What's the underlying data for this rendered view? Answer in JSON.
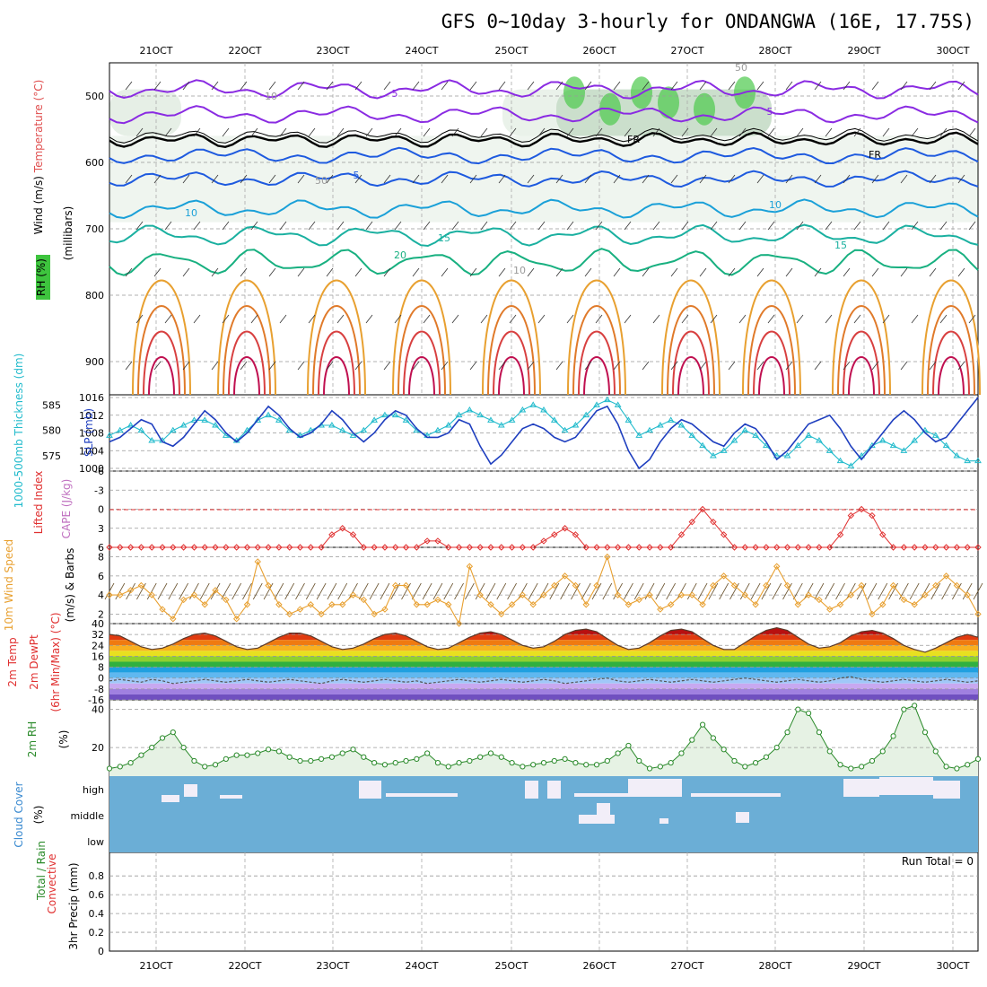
{
  "title": "GFS 0~10day 3-hourly for ONDANGWA (16E, 17.75S)",
  "x_labels": [
    "21OCT",
    "22OCT",
    "23OCT",
    "24OCT",
    "25OCT",
    "26OCT",
    "27OCT",
    "28OCT",
    "29OCT",
    "30OCT"
  ],
  "colors": {
    "cloud_bg": "#6baed6",
    "slp": "#1f3fbf",
    "thickness": "#22bbcc",
    "lifted": "#e03030",
    "wind": "#e8a030",
    "rh": "#2a8a2a"
  },
  "chart_data": [
    {
      "type": "line",
      "panel": "upper-air",
      "ylabel_parts": [
        "Wind (m/s)",
        "Temperature (°C)",
        "RH (%)",
        "(millibars)"
      ],
      "y_ticks": [
        "500",
        "600",
        "700",
        "800",
        "900"
      ],
      "contour_labels": [
        "5",
        "FR",
        "FR",
        "5",
        "5",
        "10",
        "10",
        "15",
        "15",
        "20",
        "10",
        "50",
        "50",
        "10"
      ],
      "ylim": [
        450,
        950
      ]
    },
    {
      "type": "line",
      "panel": "slp-thickness",
      "ylabel_left": "1000-500mb Thickness (dm)",
      "ylabel_right": "SLP (mb)",
      "left_ticks": [
        "585",
        "580",
        "575"
      ],
      "right_ticks": [
        "1016",
        "1012",
        "1008",
        "1004",
        "1000"
      ],
      "slp_range": [
        1000,
        1016
      ],
      "thick_range": [
        572,
        587
      ],
      "slp": [
        1006,
        1007,
        1009,
        1011,
        1010,
        1006,
        1005,
        1007,
        1010,
        1013,
        1011,
        1008,
        1006,
        1008,
        1011,
        1014,
        1012,
        1009,
        1007,
        1008,
        1010,
        1013,
        1011,
        1008,
        1006,
        1008,
        1011,
        1013,
        1012,
        1009,
        1007,
        1007,
        1008,
        1011,
        1010,
        1005,
        1001,
        1003,
        1006,
        1009,
        1010,
        1009,
        1007,
        1006,
        1007,
        1010,
        1013,
        1014,
        1010,
        1004,
        1000,
        1002,
        1006,
        1009,
        1011,
        1010,
        1008,
        1006,
        1005,
        1008,
        1010,
        1009,
        1006,
        1002,
        1004,
        1007,
        1010,
        1011,
        1012,
        1009,
        1005,
        1002,
        1005,
        1008,
        1011,
        1013,
        1011,
        1008,
        1006,
        1007,
        1010,
        1013,
        1016
      ],
      "thickness": [
        579,
        580,
        581,
        580,
        578,
        578,
        580,
        581,
        582,
        582,
        581,
        579,
        578,
        580,
        582,
        583,
        582,
        580,
        579,
        580,
        581,
        581,
        580,
        579,
        580,
        582,
        583,
        583,
        582,
        580,
        579,
        580,
        581,
        583,
        584,
        583,
        582,
        581,
        582,
        584,
        585,
        584,
        582,
        580,
        581,
        583,
        585,
        586,
        585,
        582,
        579,
        580,
        581,
        582,
        581,
        579,
        577,
        575,
        576,
        578,
        580,
        579,
        577,
        575,
        575,
        577,
        579,
        578,
        576,
        574,
        573,
        575,
        577,
        578,
        577,
        576,
        578,
        580,
        579,
        577,
        575,
        574,
        574
      ]
    },
    {
      "type": "line",
      "panel": "instability",
      "ylabel_parts": [
        "Lifted Index",
        "CAPE (J/kg)"
      ],
      "y_ticks": [
        "-6",
        "-3",
        "0",
        "3",
        "6"
      ],
      "ylim": [
        -6,
        6
      ],
      "lifted_index": [
        6,
        6,
        6,
        6,
        6,
        6,
        6,
        6,
        6,
        6,
        6,
        6,
        6,
        6,
        6,
        6,
        6,
        6,
        6,
        6,
        6,
        4,
        3,
        4,
        6,
        6,
        6,
        6,
        6,
        6,
        5,
        5,
        6,
        6,
        6,
        6,
        6,
        6,
        6,
        6,
        6,
        5,
        4,
        3,
        4,
        6,
        6,
        6,
        6,
        6,
        6,
        6,
        6,
        6,
        4,
        2,
        0,
        2,
        4,
        6,
        6,
        6,
        6,
        6,
        6,
        6,
        6,
        6,
        6,
        4,
        1,
        0,
        1,
        4,
        6,
        6,
        6,
        6,
        6,
        6,
        6,
        6,
        6
      ]
    },
    {
      "type": "line",
      "panel": "surface-wind",
      "ylabel_parts": [
        "10m Wind Speed",
        "(m/s) & Barbs"
      ],
      "y_ticks": [
        "2",
        "4",
        "6",
        "8"
      ],
      "ylim": [
        1,
        9
      ],
      "values": [
        4,
        4,
        4.5,
        5,
        4,
        2.5,
        1.5,
        3.5,
        4,
        3,
        4.5,
        3.5,
        1.5,
        3,
        7.5,
        5,
        3,
        2,
        2.5,
        3,
        2,
        3,
        3,
        4,
        3.5,
        2,
        2.5,
        5,
        5,
        3,
        3,
        3.5,
        3,
        1,
        7,
        4,
        3,
        2,
        3,
        4,
        3,
        4,
        5,
        6,
        5,
        3,
        5,
        8,
        4,
        3,
        3.5,
        4,
        2.5,
        3,
        4,
        4,
        3,
        5,
        6,
        5,
        4,
        3,
        5,
        7,
        5,
        3,
        4,
        3.5,
        2.5,
        3,
        4,
        5,
        2,
        3,
        5,
        3.5,
        3,
        4,
        5,
        6,
        5,
        4,
        2
      ]
    },
    {
      "type": "area",
      "panel": "surface-temp",
      "ylabel_parts": [
        "2m Temp",
        "2m DewPt",
        "(6hr Min/Max) (°C)"
      ],
      "y_ticks": [
        "40",
        "32",
        "24",
        "16",
        "8",
        "0",
        "-8",
        "-16"
      ],
      "ylim": [
        -16,
        40
      ],
      "temperature": [
        32,
        31,
        27,
        23,
        21,
        22,
        25,
        29,
        32,
        33,
        31,
        27,
        23,
        21,
        22,
        26,
        30,
        33,
        33,
        31,
        27,
        23,
        21,
        22,
        25,
        29,
        32,
        33,
        31,
        27,
        23,
        21,
        22,
        26,
        30,
        33,
        34,
        32,
        28,
        24,
        22,
        23,
        27,
        32,
        35,
        36,
        34,
        29,
        24,
        21,
        22,
        26,
        31,
        35,
        36,
        34,
        29,
        24,
        21,
        21,
        26,
        31,
        35,
        37,
        35,
        30,
        25,
        22,
        23,
        26,
        31,
        34,
        35,
        33,
        29,
        24,
        21,
        19,
        22,
        26,
        30,
        32,
        30
      ],
      "dewpoint": [
        -2,
        -1,
        -2,
        -3,
        -1,
        -2,
        -4,
        -3,
        -2,
        -1,
        -2,
        -3,
        -2,
        -1,
        -2,
        -3,
        -2,
        -1,
        -2,
        -3,
        -4,
        -2,
        -1,
        -2,
        -3,
        -2,
        -1,
        -2,
        -3,
        -2,
        -4,
        -3,
        -2,
        -1,
        -2,
        -3,
        -2,
        -1,
        -2,
        -3,
        -2,
        -1,
        -2,
        -4,
        -3,
        -2,
        -1,
        0,
        -2,
        -3,
        -2,
        -1,
        -2,
        -3,
        -2,
        -1,
        -2,
        -3,
        -2,
        -1,
        0,
        -1,
        -2,
        -3,
        -2,
        -1,
        -2,
        -3,
        -2,
        0,
        1,
        -1,
        -2,
        -3,
        -2,
        -1,
        -2,
        -3,
        -2,
        -1,
        -2,
        -3,
        -2
      ]
    },
    {
      "type": "area",
      "panel": "surface-rh",
      "ylabel_parts": [
        "2m RH",
        "(%)"
      ],
      "y_ticks": [
        "40",
        "20"
      ],
      "ylim": [
        5,
        45
      ],
      "values": [
        9,
        10,
        12,
        16,
        20,
        25,
        28,
        20,
        13,
        10,
        11,
        14,
        16,
        16,
        17,
        19,
        18,
        15,
        13,
        13,
        14,
        15,
        17,
        19,
        15,
        12,
        11,
        12,
        13,
        14,
        17,
        12,
        10,
        12,
        13,
        15,
        17,
        15,
        12,
        10,
        11,
        12,
        13,
        14,
        12,
        11,
        11,
        13,
        17,
        21,
        13,
        9,
        10,
        12,
        17,
        24,
        32,
        25,
        19,
        13,
        10,
        12,
        15,
        20,
        28,
        40,
        38,
        28,
        18,
        11,
        9,
        10,
        13,
        18,
        26,
        40,
        42,
        28,
        18,
        10,
        9,
        11,
        14
      ]
    },
    {
      "type": "bar",
      "panel": "cloud-cover",
      "ylabel_parts": [
        "Cloud Cover",
        "(%)"
      ],
      "y_ticks": [
        "high",
        "middle",
        "low"
      ],
      "ylim": [
        0,
        100
      ]
    },
    {
      "type": "bar",
      "panel": "precipitation",
      "ylabel_parts": [
        "Total / Rain",
        "Convective",
        "3hr Precip (mm)"
      ],
      "y_ticks": [
        "0.8",
        "0.6",
        "0.4",
        "0.2",
        "0"
      ],
      "ylim": [
        0,
        1
      ],
      "annotation": "Run Total = 0",
      "values": []
    }
  ]
}
